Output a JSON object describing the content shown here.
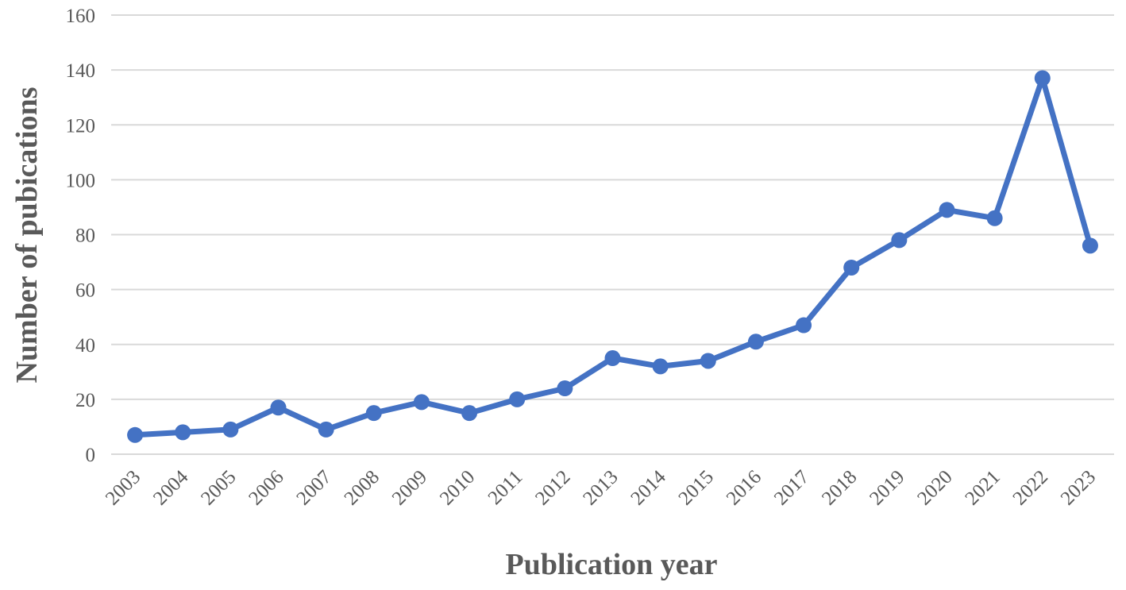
{
  "chart_data": {
    "type": "line",
    "title": "",
    "xlabel": "Publication year",
    "ylabel": "Number of pubications",
    "ylim": [
      0,
      160
    ],
    "yticks": [
      0,
      20,
      40,
      60,
      80,
      100,
      120,
      140,
      160
    ],
    "grid": true,
    "legend": "none",
    "categories": [
      "2003",
      "2004",
      "2005",
      "2006",
      "2007",
      "2008",
      "2009",
      "2010",
      "2011",
      "2012",
      "2013",
      "2014",
      "2015",
      "2016",
      "2017",
      "2018",
      "2019",
      "2020",
      "2021",
      "2022",
      "2023"
    ],
    "series": [
      {
        "color": "#4472c4",
        "values": [
          7,
          8,
          9,
          17,
          9,
          15,
          19,
          15,
          20,
          24,
          35,
          32,
          34,
          41,
          47,
          68,
          78,
          89,
          86,
          137,
          76
        ]
      }
    ]
  }
}
